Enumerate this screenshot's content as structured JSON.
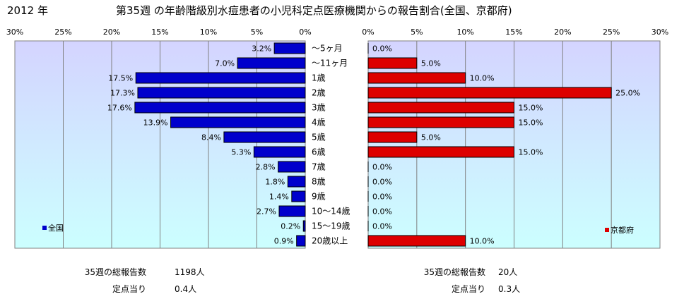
{
  "header": {
    "year": "2012 年",
    "title": "第35週 の年齢階級別水痘患者の小児科定点医療機関からの報告割合(全国、京都府)"
  },
  "colors": {
    "national_bar": "#0000cc",
    "kyoto_bar": "#dd0000",
    "plot_gradient_top": "#d4d4ff",
    "plot_gradient_bottom": "#ccffff"
  },
  "chart_data": [
    {
      "type": "bar",
      "orientation": "horizontal",
      "direction": "right-to-left",
      "legend": "全国",
      "legend_position": "bottom-left",
      "categories": [
        "～5ヶ月",
        "～11ヶ月",
        "1歳",
        "2歳",
        "3歳",
        "4歳",
        "5歳",
        "6歳",
        "7歳",
        "8歳",
        "9歳",
        "10～14歳",
        "15～19歳",
        "20歳以上"
      ],
      "values": [
        3.2,
        7.0,
        17.5,
        17.3,
        17.6,
        13.9,
        8.4,
        5.3,
        2.8,
        1.8,
        1.4,
        2.7,
        0.2,
        0.9
      ],
      "value_labels": [
        "3.2%",
        "7.0%",
        "17.5%",
        "17.3%",
        "17.6%",
        "13.9%",
        "8.4%",
        "5.3%",
        "2.8%",
        "1.8%",
        "1.4%",
        "2.7%",
        "0.2%",
        "0.9%"
      ],
      "xlim": [
        0,
        30
      ],
      "ticks": [
        "30%",
        "25%",
        "20%",
        "15%",
        "10%",
        "5%",
        "0%"
      ],
      "grid": true
    },
    {
      "type": "bar",
      "orientation": "horizontal",
      "direction": "left-to-right",
      "legend": "京都府",
      "legend_position": "bottom-right",
      "categories": [
        "～5ヶ月",
        "～11ヶ月",
        "1歳",
        "2歳",
        "3歳",
        "4歳",
        "5歳",
        "6歳",
        "7歳",
        "8歳",
        "9歳",
        "10～14歳",
        "15～19歳",
        "20歳以上"
      ],
      "values": [
        0.0,
        5.0,
        10.0,
        25.0,
        15.0,
        15.0,
        5.0,
        15.0,
        0.0,
        0.0,
        0.0,
        0.0,
        0.0,
        10.0
      ],
      "value_labels": [
        "0.0%",
        "5.0%",
        "10.0%",
        "25.0%",
        "15.0%",
        "15.0%",
        "5.0%",
        "15.0%",
        "0.0%",
        "0.0%",
        "0.0%",
        "0.0%",
        "0.0%",
        "10.0%"
      ],
      "xlim": [
        0,
        30
      ],
      "ticks": [
        "0%",
        "5%",
        "10%",
        "15%",
        "20%",
        "25%",
        "30%"
      ],
      "grid": true
    }
  ],
  "footer": {
    "national": {
      "total_label": "35週の総報告数",
      "total_value": "1198人",
      "per_label": "定点当り",
      "per_value": "0.4人"
    },
    "kyoto": {
      "total_label": "35週の総報告数",
      "total_value": "20人",
      "per_label": "定点当り",
      "per_value": "0.3人"
    }
  }
}
